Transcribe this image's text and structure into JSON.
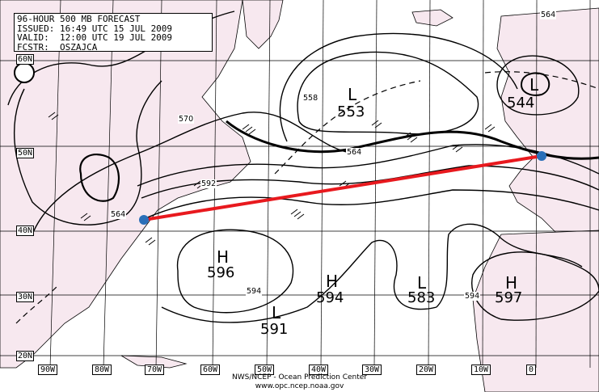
{
  "header": {
    "line1": "96-HOUR 500 MB FORECAST",
    "line2": "ISSUED: 16:49 UTC 15 JUL 2009",
    "line3": "VALID:  12:00 UTC 19 JUL 2009",
    "line4": "FCSTR:  OSZAJCA"
  },
  "icons": {
    "logo": "noaa-logo-icon"
  },
  "latitudes": [
    "60N",
    "50N",
    "40N",
    "30N",
    "20N"
  ],
  "longitudes": [
    "90W",
    "80W",
    "70W",
    "60W",
    "50W",
    "40W",
    "30W",
    "20W",
    "10W",
    "0"
  ],
  "systems": {
    "l1": {
      "letter": "L",
      "value": "553"
    },
    "l2": {
      "letter": "L",
      "value": "544"
    },
    "h1": {
      "letter": "H",
      "value": "596"
    },
    "h2": {
      "letter": "H",
      "value": "594"
    },
    "l3": {
      "letter": "L",
      "value": "591"
    },
    "l4": {
      "letter": "L",
      "value": "583"
    },
    "h3": {
      "letter": "H",
      "value": "597"
    }
  },
  "contour_labels": {
    "c564_top": "564",
    "c558": "558",
    "c570": "570",
    "c564_mid": "564",
    "c592": "592",
    "c564_gl": "564",
    "c594_a": "594",
    "c594_b": "594"
  },
  "credit": {
    "line1": "NWS/NCEP - Ocean Prediction Center",
    "line2": "www.opc.ncep.noaa.gov"
  },
  "colors": {
    "land": "#f7e8ef",
    "track": "#e8191e",
    "marker": "#2a6fb8",
    "contour": "#000000"
  }
}
